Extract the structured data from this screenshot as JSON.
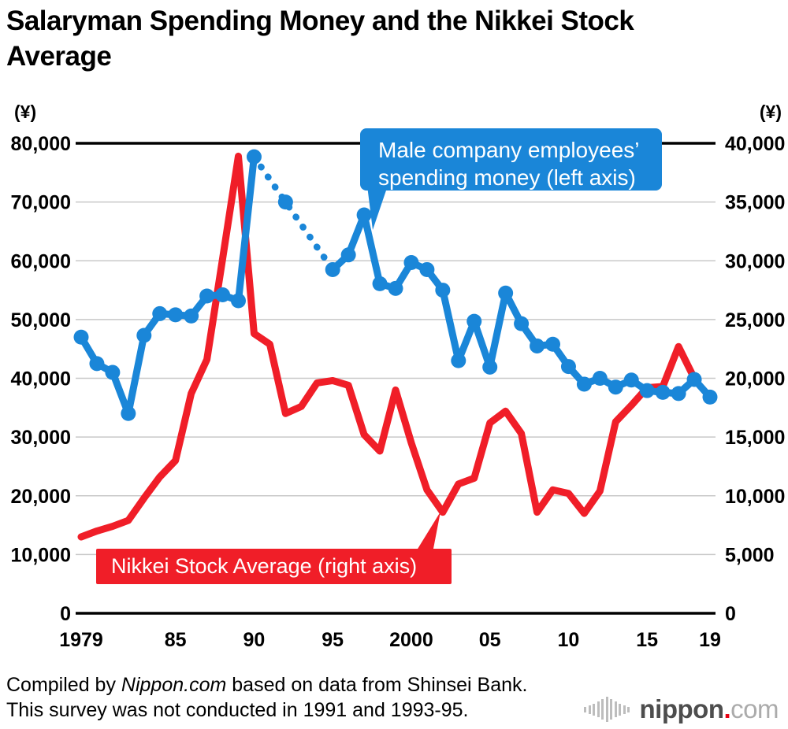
{
  "title": "Salaryman Spending Money and the Nikkei Stock Average",
  "axes": {
    "left_unit": "(¥)",
    "right_unit": "(¥)",
    "left_ticks": [
      "80,000",
      "70,000",
      "60,000",
      "50,000",
      "40,000",
      "30,000",
      "20,000",
      "10,000",
      "0"
    ],
    "right_ticks": [
      "40,000",
      "35,000",
      "30,000",
      "25,000",
      "20,000",
      "15,000",
      "10,000",
      "5,000",
      "0"
    ],
    "x_ticks": [
      {
        "label": "1979",
        "year": 1979
      },
      {
        "label": "85",
        "year": 1985
      },
      {
        "label": "90",
        "year": 1990
      },
      {
        "label": "95",
        "year": 1995
      },
      {
        "label": "2000",
        "year": 2000
      },
      {
        "label": "05",
        "year": 2005
      },
      {
        "label": "10",
        "year": 2010
      },
      {
        "label": "15",
        "year": 2015
      },
      {
        "label": "19",
        "year": 2019
      }
    ]
  },
  "legend": {
    "spending": {
      "line1": "Male company employees’",
      "line2": "spending money (left axis)",
      "color": "#1a86d8"
    },
    "nikkei": {
      "label": "Nikkei Stock Average (right axis)",
      "color": "#f01e28"
    }
  },
  "footer": {
    "line1_prefix": "Compiled by ",
    "line1_source": "Nippon.com",
    "line1_suffix": " based on data from Shinsei Bank.",
    "line2": "This survey was not conducted in 1991 and 1993-95."
  },
  "logo": {
    "name": "nippon",
    "dot": ".",
    "suffix": "com"
  },
  "chart_data": {
    "type": "line",
    "title": "Salaryman Spending Money and the Nikkei Stock Average",
    "x_axis": {
      "min": 1979,
      "max": 2019
    },
    "left_axis": {
      "label": "(¥)",
      "min": 0,
      "max": 80000,
      "step": 10000
    },
    "right_axis": {
      "label": "(¥)",
      "min": 0,
      "max": 40000,
      "step": 5000
    },
    "grid": true,
    "series": [
      {
        "name": "Male company employees’ spending money (left axis)",
        "axis": "left",
        "color": "#1a86d8",
        "markers": true,
        "dotted_span": [
          1990,
          1995
        ],
        "points": [
          [
            1979,
            47000
          ],
          [
            1980,
            42500
          ],
          [
            1981,
            41000
          ],
          [
            1982,
            34000
          ],
          [
            1983,
            47300
          ],
          [
            1984,
            51000
          ],
          [
            1985,
            50800
          ],
          [
            1986,
            50600
          ],
          [
            1987,
            54000
          ],
          [
            1988,
            54200
          ],
          [
            1989,
            53200
          ],
          [
            1990,
            77700
          ],
          [
            1992,
            70000
          ],
          [
            1995,
            58500
          ],
          [
            1996,
            61000
          ],
          [
            1997,
            67800
          ],
          [
            1998,
            56100
          ],
          [
            1999,
            55300
          ],
          [
            2000,
            59700
          ],
          [
            2001,
            58500
          ],
          [
            2002,
            55000
          ],
          [
            2003,
            43000
          ],
          [
            2004,
            49700
          ],
          [
            2005,
            41900
          ],
          [
            2006,
            54500
          ],
          [
            2007,
            49300
          ],
          [
            2008,
            45500
          ],
          [
            2009,
            45800
          ],
          [
            2010,
            42000
          ],
          [
            2011,
            39000
          ],
          [
            2012,
            40000
          ],
          [
            2013,
            38500
          ],
          [
            2014,
            39700
          ],
          [
            2015,
            37900
          ],
          [
            2016,
            37600
          ],
          [
            2017,
            37400
          ],
          [
            2018,
            39800
          ],
          [
            2019,
            36800
          ]
        ]
      },
      {
        "name": "Nikkei Stock Average (right axis)",
        "axis": "right",
        "color": "#f01e28",
        "markers": false,
        "points": [
          [
            1979,
            6500
          ],
          [
            1980,
            7000
          ],
          [
            1981,
            7400
          ],
          [
            1982,
            7900
          ],
          [
            1983,
            9800
          ],
          [
            1984,
            11600
          ],
          [
            1985,
            13000
          ],
          [
            1986,
            18700
          ],
          [
            1987,
            21600
          ],
          [
            1988,
            30200
          ],
          [
            1989,
            38900
          ],
          [
            1990,
            23800
          ],
          [
            1991,
            22900
          ],
          [
            1992,
            17000
          ],
          [
            1993,
            17600
          ],
          [
            1994,
            19600
          ],
          [
            1995,
            19800
          ],
          [
            1996,
            19400
          ],
          [
            1997,
            15200
          ],
          [
            1998,
            13800
          ],
          [
            1999,
            19000
          ],
          [
            2000,
            14500
          ],
          [
            2001,
            10500
          ],
          [
            2002,
            8600
          ],
          [
            2003,
            11000
          ],
          [
            2004,
            11500
          ],
          [
            2005,
            16200
          ],
          [
            2006,
            17200
          ],
          [
            2007,
            15300
          ],
          [
            2008,
            8600
          ],
          [
            2009,
            10500
          ],
          [
            2010,
            10200
          ],
          [
            2011,
            8500
          ],
          [
            2012,
            10400
          ],
          [
            2013,
            16300
          ],
          [
            2014,
            17700
          ],
          [
            2015,
            19200
          ],
          [
            2016,
            19300
          ],
          [
            2017,
            22700
          ],
          [
            2018,
            20000
          ]
        ]
      }
    ],
    "note": "Blue series has no data for 1991 and 1993-94; the gap (1990–1992–1995) is drawn with a dotted line."
  }
}
